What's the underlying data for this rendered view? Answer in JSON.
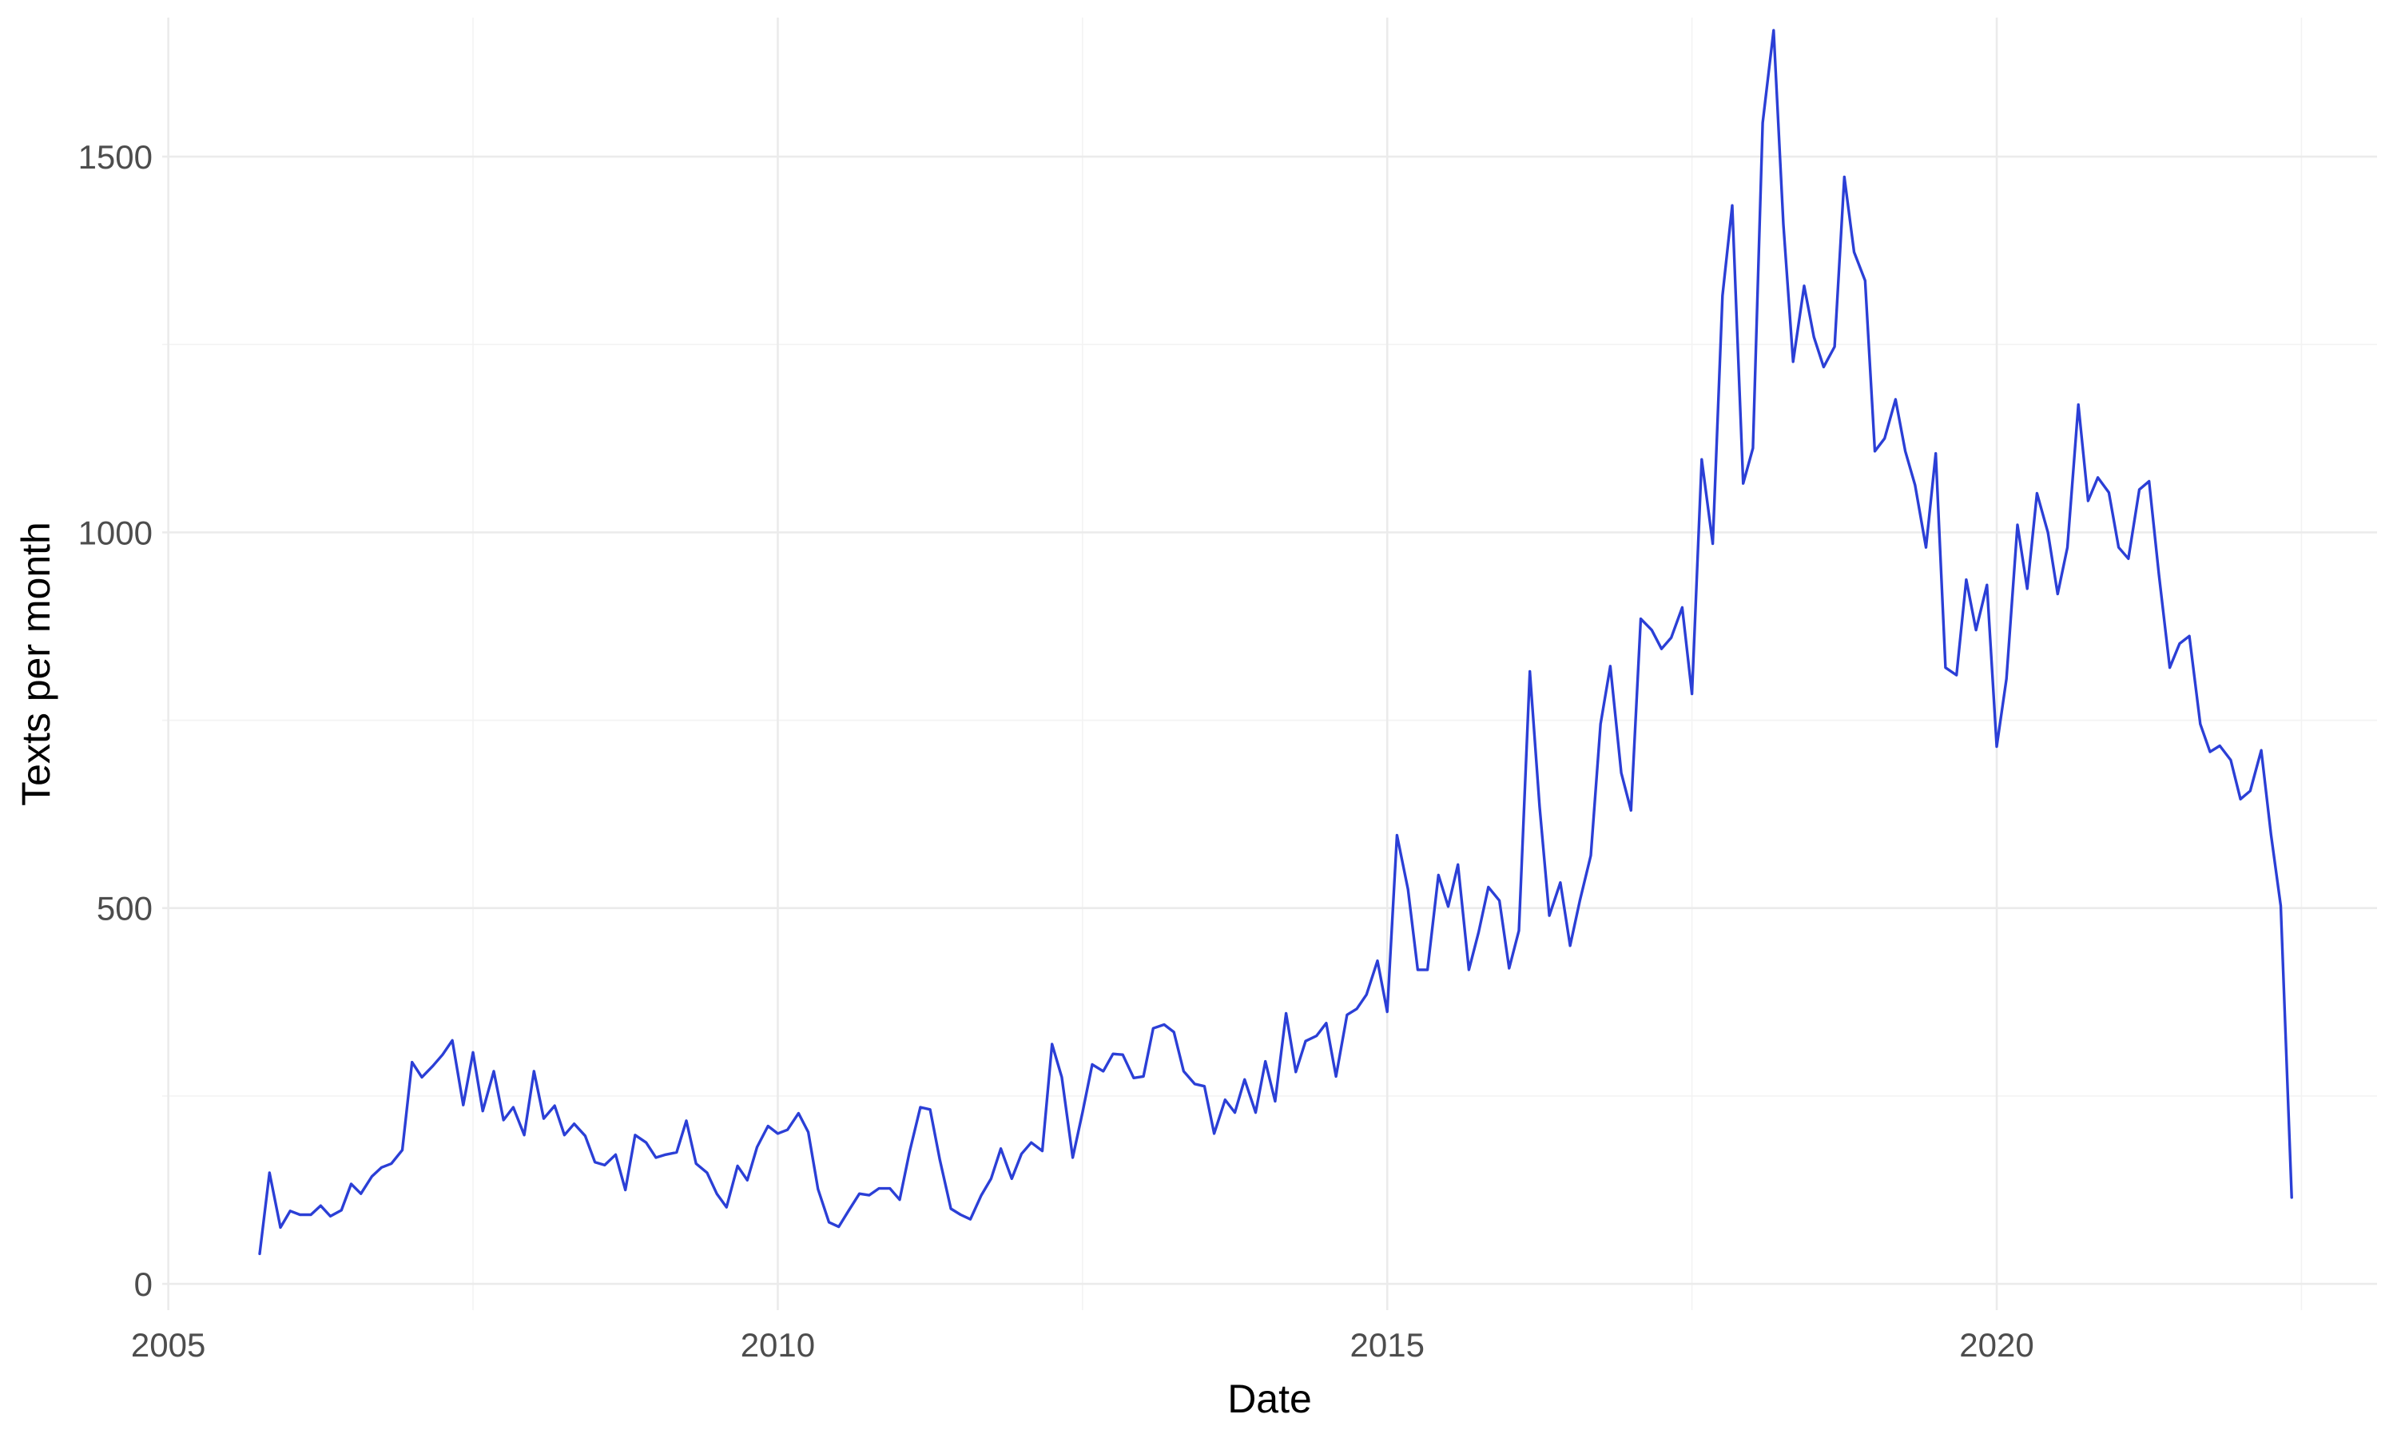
{
  "chart_data": {
    "type": "line",
    "title": "",
    "xlabel": "Date",
    "ylabel": "Texts per month",
    "xlim": [
      2004.95,
      2023.12
    ],
    "ylim": [
      -35,
      1685
    ],
    "x_ticks": [
      2005,
      2010,
      2015,
      2020
    ],
    "x_tick_labels": [
      "2005",
      "2010",
      "2015",
      "2020"
    ],
    "x_minor_ticks": [
      2007.5,
      2012.5,
      2017.5,
      2022.5
    ],
    "y_ticks": [
      0,
      500,
      1000,
      1500
    ],
    "y_tick_labels": [
      "0",
      "500",
      "1000",
      "1500"
    ],
    "y_minor_ticks": [
      250,
      750,
      1250
    ],
    "grid": true,
    "colors": {
      "series": "#2b3fd6",
      "grid": "#ebebeb"
    },
    "series": [
      {
        "points": [
          [
            2005.75,
            40
          ],
          [
            2005.83,
            148
          ],
          [
            2005.92,
            75
          ],
          [
            2006.0,
            97
          ],
          [
            2006.08,
            92
          ],
          [
            2006.17,
            92
          ],
          [
            2006.25,
            104
          ],
          [
            2006.33,
            90
          ],
          [
            2006.42,
            98
          ],
          [
            2006.5,
            133
          ],
          [
            2006.58,
            120
          ],
          [
            2006.67,
            143
          ],
          [
            2006.75,
            155
          ],
          [
            2006.83,
            160
          ],
          [
            2006.92,
            178
          ],
          [
            2007.0,
            295
          ],
          [
            2007.08,
            275
          ],
          [
            2007.17,
            290
          ],
          [
            2007.25,
            305
          ],
          [
            2007.33,
            324
          ],
          [
            2007.42,
            238
          ],
          [
            2007.5,
            308
          ],
          [
            2007.58,
            230
          ],
          [
            2007.67,
            283
          ],
          [
            2007.75,
            218
          ],
          [
            2007.83,
            235
          ],
          [
            2007.92,
            198
          ],
          [
            2008.0,
            283
          ],
          [
            2008.08,
            220
          ],
          [
            2008.17,
            237
          ],
          [
            2008.25,
            198
          ],
          [
            2008.33,
            213
          ],
          [
            2008.42,
            197
          ],
          [
            2008.5,
            162
          ],
          [
            2008.58,
            158
          ],
          [
            2008.67,
            172
          ],
          [
            2008.75,
            125
          ],
          [
            2008.83,
            198
          ],
          [
            2008.92,
            188
          ],
          [
            2009.0,
            168
          ],
          [
            2009.08,
            172
          ],
          [
            2009.17,
            175
          ],
          [
            2009.25,
            217
          ],
          [
            2009.33,
            160
          ],
          [
            2009.42,
            148
          ],
          [
            2009.5,
            120
          ],
          [
            2009.58,
            102
          ],
          [
            2009.67,
            157
          ],
          [
            2009.75,
            138
          ],
          [
            2009.83,
            182
          ],
          [
            2009.92,
            210
          ],
          [
            2010.0,
            200
          ],
          [
            2010.08,
            205
          ],
          [
            2010.17,
            227
          ],
          [
            2010.25,
            202
          ],
          [
            2010.33,
            126
          ],
          [
            2010.42,
            82
          ],
          [
            2010.5,
            76
          ],
          [
            2010.58,
            97
          ],
          [
            2010.67,
            120
          ],
          [
            2010.75,
            118
          ],
          [
            2010.83,
            127
          ],
          [
            2010.92,
            127
          ],
          [
            2011.0,
            112
          ],
          [
            2011.08,
            175
          ],
          [
            2011.17,
            235
          ],
          [
            2011.25,
            232
          ],
          [
            2011.33,
            165
          ],
          [
            2011.42,
            100
          ],
          [
            2011.5,
            92
          ],
          [
            2011.58,
            86
          ],
          [
            2011.67,
            118
          ],
          [
            2011.75,
            140
          ],
          [
            2011.83,
            180
          ],
          [
            2011.92,
            140
          ],
          [
            2012.0,
            173
          ],
          [
            2012.08,
            188
          ],
          [
            2012.17,
            177
          ],
          [
            2012.25,
            319
          ],
          [
            2012.33,
            275
          ],
          [
            2012.42,
            168
          ],
          [
            2012.5,
            228
          ],
          [
            2012.58,
            292
          ],
          [
            2012.67,
            283
          ],
          [
            2012.75,
            306
          ],
          [
            2012.83,
            305
          ],
          [
            2012.92,
            274
          ],
          [
            2013.0,
            276
          ],
          [
            2013.08,
            340
          ],
          [
            2013.17,
            345
          ],
          [
            2013.25,
            335
          ],
          [
            2013.33,
            283
          ],
          [
            2013.42,
            266
          ],
          [
            2013.5,
            263
          ],
          [
            2013.58,
            200
          ],
          [
            2013.67,
            245
          ],
          [
            2013.75,
            228
          ],
          [
            2013.83,
            272
          ],
          [
            2013.92,
            228
          ],
          [
            2014.0,
            296
          ],
          [
            2014.08,
            243
          ],
          [
            2014.17,
            360
          ],
          [
            2014.25,
            282
          ],
          [
            2014.33,
            323
          ],
          [
            2014.42,
            330
          ],
          [
            2014.5,
            347
          ],
          [
            2014.58,
            276
          ],
          [
            2014.67,
            358
          ],
          [
            2014.75,
            366
          ],
          [
            2014.83,
            385
          ],
          [
            2014.92,
            430
          ],
          [
            2015.0,
            362
          ],
          [
            2015.08,
            597
          ],
          [
            2015.17,
            525
          ],
          [
            2015.25,
            418
          ],
          [
            2015.33,
            418
          ],
          [
            2015.42,
            544
          ],
          [
            2015.5,
            502
          ],
          [
            2015.58,
            558
          ],
          [
            2015.67,
            418
          ],
          [
            2015.75,
            468
          ],
          [
            2015.83,
            528
          ],
          [
            2015.92,
            510
          ],
          [
            2016.0,
            420
          ],
          [
            2016.08,
            470
          ],
          [
            2016.17,
            815
          ],
          [
            2016.25,
            635
          ],
          [
            2016.33,
            490
          ],
          [
            2016.42,
            534
          ],
          [
            2016.5,
            450
          ],
          [
            2016.58,
            510
          ],
          [
            2016.67,
            570
          ],
          [
            2016.75,
            745
          ],
          [
            2016.83,
            822
          ],
          [
            2016.92,
            680
          ],
          [
            2017.0,
            630
          ],
          [
            2017.08,
            885
          ],
          [
            2017.17,
            870
          ],
          [
            2017.25,
            845
          ],
          [
            2017.33,
            860
          ],
          [
            2017.42,
            900
          ],
          [
            2017.5,
            785
          ],
          [
            2017.58,
            1097
          ],
          [
            2017.67,
            985
          ],
          [
            2017.75,
            1315
          ],
          [
            2017.83,
            1435
          ],
          [
            2017.92,
            1065
          ],
          [
            2018.0,
            1112
          ],
          [
            2018.08,
            1545
          ],
          [
            2018.17,
            1668
          ],
          [
            2018.25,
            1410
          ],
          [
            2018.33,
            1227
          ],
          [
            2018.42,
            1328
          ],
          [
            2018.5,
            1260
          ],
          [
            2018.58,
            1220
          ],
          [
            2018.67,
            1247
          ],
          [
            2018.75,
            1473
          ],
          [
            2018.83,
            1373
          ],
          [
            2018.92,
            1335
          ],
          [
            2019.0,
            1108
          ],
          [
            2019.08,
            1125
          ],
          [
            2019.17,
            1177
          ],
          [
            2019.25,
            1108
          ],
          [
            2019.33,
            1063
          ],
          [
            2019.42,
            980
          ],
          [
            2019.5,
            1105
          ],
          [
            2019.58,
            820
          ],
          [
            2019.67,
            810
          ],
          [
            2019.75,
            937
          ],
          [
            2019.83,
            870
          ],
          [
            2019.92,
            930
          ],
          [
            2020.0,
            715
          ],
          [
            2020.08,
            805
          ],
          [
            2020.17,
            1010
          ],
          [
            2020.25,
            925
          ],
          [
            2020.33,
            1052
          ],
          [
            2020.42,
            1000
          ],
          [
            2020.5,
            918
          ],
          [
            2020.58,
            980
          ],
          [
            2020.67,
            1170
          ],
          [
            2020.75,
            1042
          ],
          [
            2020.83,
            1073
          ],
          [
            2020.92,
            1053
          ],
          [
            2021.0,
            980
          ],
          [
            2021.08,
            965
          ],
          [
            2021.17,
            1057
          ],
          [
            2021.25,
            1068
          ],
          [
            2021.33,
            945
          ],
          [
            2021.42,
            820
          ],
          [
            2021.5,
            852
          ],
          [
            2021.58,
            862
          ],
          [
            2021.67,
            745
          ],
          [
            2021.75,
            708
          ],
          [
            2021.83,
            716
          ],
          [
            2021.92,
            697
          ],
          [
            2022.0,
            645
          ],
          [
            2022.08,
            656
          ],
          [
            2022.17,
            710
          ],
          [
            2022.25,
            598
          ],
          [
            2022.33,
            503
          ],
          [
            2022.42,
            115
          ]
        ]
      }
    ]
  }
}
